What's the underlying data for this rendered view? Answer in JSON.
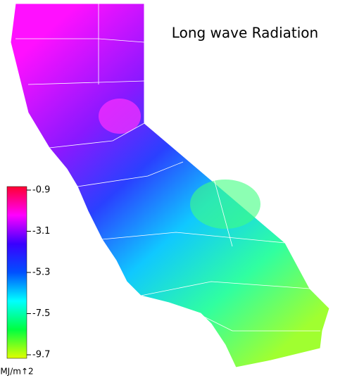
{
  "title": "Long wave Radiation",
  "legend": {
    "ticks": [
      -0.9,
      -3.1,
      -5.3,
      -7.5,
      -9.7
    ],
    "unit": "MJ/m↑2",
    "colors": [
      "#ff0030",
      "#ff00ff",
      "#3a00ff",
      "#0050ff",
      "#00ffff",
      "#00ff40",
      "#e0ff00"
    ]
  }
}
